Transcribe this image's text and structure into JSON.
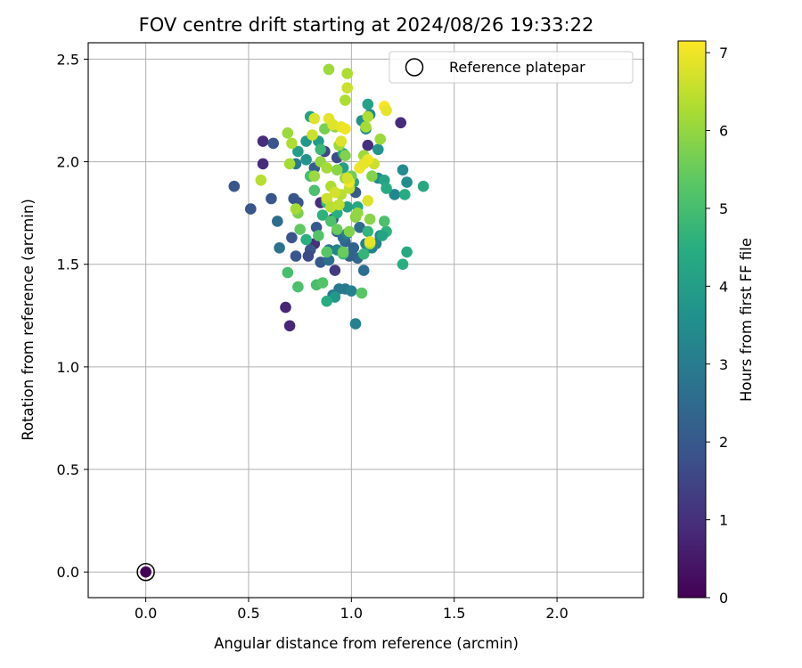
{
  "chart_data": {
    "type": "scatter",
    "title": "FOV centre drift starting at 2024/08/26 19:33:22",
    "xlabel": "Angular distance from reference (arcmin)",
    "ylabel": "Rotation from reference (arcmin)",
    "xlim": [
      -0.28,
      2.42
    ],
    "ylim": [
      -0.125,
      2.58
    ],
    "xticks": [
      "0.0",
      "0.5",
      "1.0",
      "1.5",
      "2.0"
    ],
    "yticks": [
      "0.0",
      "0.5",
      "1.0",
      "1.5",
      "2.0",
      "2.5"
    ],
    "grid": true,
    "legend": {
      "label": "Reference platepar",
      "placement": "top-right"
    },
    "reference_point": {
      "x": 0.0,
      "y": 0.0,
      "hours": 0.0
    },
    "colorbar": {
      "label": "Hours from first FF file",
      "colormap": "viridis",
      "min": 0,
      "max": 7.15,
      "ticks": [
        "0",
        "1",
        "2",
        "3",
        "4",
        "5",
        "6",
        "7"
      ]
    },
    "points": [
      [
        0.68,
        1.29,
        0.8
      ],
      [
        0.7,
        1.2,
        0.8
      ],
      [
        0.57,
        2.1,
        0.9
      ],
      [
        0.57,
        1.99,
        0.9
      ],
      [
        1.24,
        2.19,
        0.9
      ],
      [
        1.08,
        2.08,
        1.0
      ],
      [
        0.82,
        1.6,
        1.0
      ],
      [
        0.85,
        1.8,
        1.0
      ],
      [
        0.92,
        1.47,
        1.2
      ],
      [
        0.43,
        1.88,
        1.9
      ],
      [
        0.51,
        1.77,
        1.9
      ],
      [
        0.61,
        1.82,
        1.9
      ],
      [
        0.62,
        2.09,
        1.9
      ],
      [
        0.72,
        1.82,
        1.9
      ],
      [
        0.74,
        1.8,
        1.9
      ],
      [
        0.73,
        1.54,
        1.9
      ],
      [
        0.71,
        1.63,
        1.9
      ],
      [
        0.8,
        1.57,
        1.9
      ],
      [
        0.83,
        1.68,
        2.0
      ],
      [
        0.85,
        1.51,
        2.0
      ],
      [
        0.79,
        1.54,
        1.6
      ],
      [
        0.91,
        1.72,
        1.7
      ],
      [
        0.93,
        1.66,
        2.2
      ],
      [
        0.97,
        1.61,
        2.3
      ],
      [
        1.01,
        1.58,
        2.3
      ],
      [
        1.03,
        1.53,
        2.4
      ],
      [
        0.99,
        1.54,
        2.2
      ],
      [
        1.02,
        1.85,
        2.0
      ],
      [
        0.93,
        2.02,
        1.6
      ],
      [
        0.87,
        2.05,
        1.5
      ],
      [
        0.82,
        1.97,
        2.1
      ],
      [
        1.04,
        1.68,
        2.5
      ],
      [
        0.89,
        1.52,
        2.6
      ],
      [
        0.96,
        1.63,
        2.6
      ],
      [
        1.06,
        1.47,
        2.6
      ],
      [
        1.08,
        1.58,
        2.4
      ],
      [
        0.64,
        1.71,
        2.6
      ],
      [
        0.65,
        1.58,
        2.7
      ],
      [
        0.73,
        1.99,
        2.9
      ],
      [
        0.89,
        1.57,
        2.8
      ],
      [
        0.94,
        1.38,
        2.9
      ],
      [
        0.91,
        1.35,
        3.0
      ],
      [
        0.97,
        1.38,
        2.9
      ],
      [
        1.0,
        1.37,
        3.1
      ],
      [
        1.02,
        1.21,
        3.1
      ],
      [
        0.98,
        1.65,
        3.1
      ],
      [
        0.93,
        1.57,
        3.2
      ],
      [
        1.12,
        1.6,
        3.2
      ],
      [
        1.07,
        1.6,
        3.1
      ],
      [
        1.14,
        1.64,
        3.3
      ],
      [
        1.1,
        1.58,
        3.2
      ],
      [
        1.21,
        1.84,
        3.3
      ],
      [
        1.25,
        1.96,
        3.4
      ],
      [
        1.27,
        1.9,
        3.5
      ],
      [
        1.13,
        1.92,
        3.4
      ],
      [
        1.07,
        2.16,
        3.5
      ],
      [
        1.05,
        2.2,
        3.6
      ],
      [
        1.09,
        2.23,
        3.4
      ],
      [
        1.13,
        2.06,
        3.7
      ],
      [
        0.78,
        2.01,
        3.7
      ],
      [
        0.78,
        2.1,
        3.8
      ],
      [
        0.74,
        2.05,
        4.0
      ],
      [
        0.84,
        2.1,
        3.9
      ],
      [
        0.92,
        1.34,
        3.8
      ],
      [
        0.96,
        2.04,
        4.1
      ],
      [
        0.96,
        1.97,
        4.0
      ],
      [
        0.98,
        1.78,
        4.0
      ],
      [
        1.01,
        1.9,
        4.2
      ],
      [
        1.08,
        2.28,
        4.1
      ],
      [
        1.16,
        1.91,
        4.2
      ],
      [
        1.17,
        1.87,
        4.4
      ],
      [
        1.26,
        1.84,
        4.4
      ],
      [
        1.35,
        1.88,
        4.3
      ],
      [
        1.27,
        1.56,
        4.3
      ],
      [
        1.25,
        1.5,
        4.5
      ],
      [
        1.17,
        1.66,
        4.6
      ],
      [
        1.15,
        1.64,
        4.2
      ],
      [
        1.06,
        1.55,
        4.7
      ],
      [
        1.08,
        1.66,
        4.7
      ],
      [
        1.03,
        1.78,
        4.3
      ],
      [
        0.8,
        2.22,
        4.1
      ],
      [
        0.88,
        1.32,
        4.4
      ],
      [
        0.78,
        1.62,
        4.5
      ],
      [
        0.85,
        2.06,
        4.8
      ],
      [
        0.88,
        1.8,
        4.8
      ],
      [
        0.86,
        1.74,
        4.6
      ],
      [
        0.93,
        1.75,
        4.5
      ],
      [
        0.96,
        1.55,
        4.9
      ],
      [
        0.8,
        1.93,
        5.0
      ],
      [
        0.82,
        1.86,
        5.1
      ],
      [
        0.69,
        1.46,
        5.0
      ],
      [
        0.74,
        1.39,
        5.1
      ],
      [
        0.83,
        1.4,
        5.0
      ],
      [
        0.86,
        1.41,
        5.2
      ],
      [
        0.84,
        1.64,
        5.2
      ],
      [
        0.9,
        1.71,
        5.1
      ],
      [
        1.05,
        1.36,
        5.3
      ],
      [
        1.16,
        1.71,
        5.1
      ],
      [
        0.75,
        1.67,
        5.4
      ],
      [
        0.88,
        1.56,
        5.3
      ],
      [
        0.93,
        1.67,
        5.5
      ],
      [
        0.96,
        1.56,
        5.5
      ],
      [
        0.99,
        1.66,
        5.8
      ],
      [
        1.09,
        1.6,
        6.2
      ],
      [
        1.09,
        1.72,
        5.9
      ],
      [
        0.74,
        1.75,
        5.7
      ],
      [
        0.73,
        1.77,
        6.2
      ],
      [
        0.69,
        2.14,
        6.1
      ],
      [
        0.7,
        1.99,
        6.2
      ],
      [
        0.71,
        2.09,
        6.3
      ],
      [
        0.56,
        1.91,
        6.4
      ],
      [
        0.87,
        2.16,
        5.7
      ],
      [
        0.92,
        2.17,
        5.9
      ],
      [
        0.94,
        2.08,
        6.1
      ],
      [
        0.97,
        2.03,
        5.8
      ],
      [
        1.0,
        1.93,
        5.6
      ],
      [
        1.02,
        1.73,
        5.9
      ],
      [
        1.03,
        1.75,
        6.0
      ],
      [
        1.06,
        2.03,
        6.1
      ],
      [
        1.07,
        2.17,
        6.2
      ],
      [
        1.08,
        2.22,
        6.3
      ],
      [
        1.1,
        1.93,
        5.8
      ],
      [
        1.14,
        2.11,
        6.1
      ],
      [
        1.11,
        1.99,
        6.6
      ],
      [
        0.85,
        2.0,
        6.0
      ],
      [
        0.82,
        1.93,
        6.1
      ],
      [
        0.88,
        1.97,
        6.2
      ],
      [
        0.9,
        1.88,
        6.3
      ],
      [
        0.93,
        1.96,
        5.9
      ],
      [
        0.95,
        1.84,
        6.4
      ],
      [
        0.97,
        1.92,
        6.0
      ],
      [
        0.99,
        1.87,
        6.5
      ],
      [
        0.88,
        1.82,
        6.6
      ],
      [
        0.9,
        1.78,
        6.4
      ],
      [
        0.92,
        1.85,
        6.7
      ],
      [
        0.94,
        1.79,
        6.5
      ],
      [
        0.89,
        2.45,
        6.1
      ],
      [
        0.98,
        2.43,
        6.3
      ],
      [
        0.98,
        2.36,
        6.6
      ],
      [
        0.97,
        2.3,
        6.3
      ],
      [
        0.81,
        2.13,
        6.6
      ],
      [
        0.82,
        2.21,
        6.8
      ],
      [
        0.89,
        2.21,
        6.9
      ],
      [
        0.91,
        2.18,
        6.8
      ],
      [
        0.95,
        2.17,
        6.9
      ],
      [
        0.97,
        2.16,
        7.0
      ],
      [
        0.99,
        1.9,
        7.0
      ],
      [
        1.04,
        1.97,
        7.0
      ],
      [
        1.08,
        2.01,
        7.0
      ],
      [
        1.06,
        1.99,
        6.9
      ],
      [
        1.16,
        2.27,
        7.1
      ],
      [
        1.17,
        2.25,
        6.9
      ],
      [
        1.08,
        1.81,
        6.8
      ],
      [
        1.09,
        1.61,
        6.9
      ],
      [
        0.95,
        2.1,
        6.8
      ],
      [
        0.98,
        1.92,
        6.7
      ]
    ]
  }
}
